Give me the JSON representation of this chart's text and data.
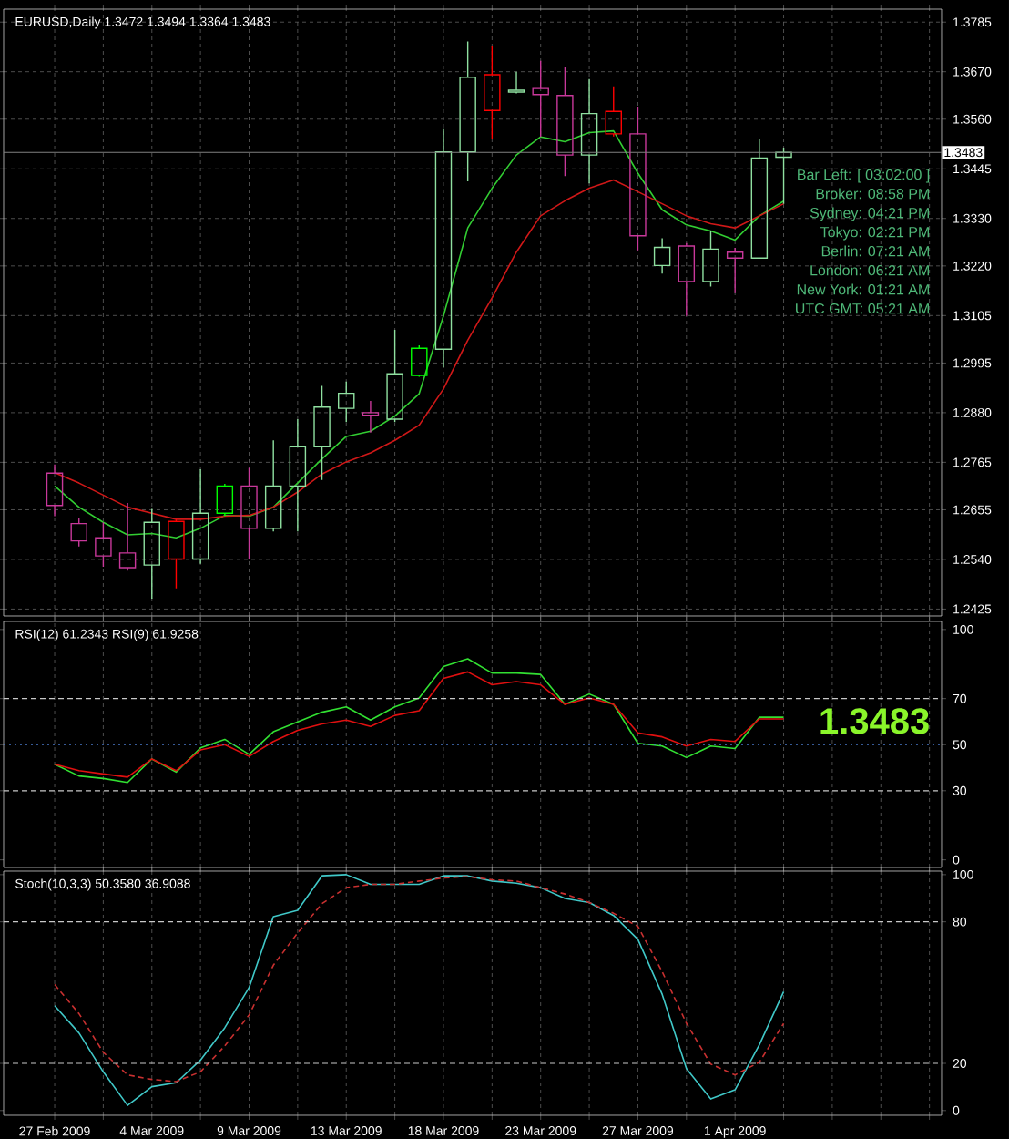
{
  "chart_data": [
    {
      "type": "candlestick",
      "title": "EURUSD,Daily 1.3472 1.3494 1.3364 1.3483",
      "categories": [
        null,
        null,
        null,
        null,
        null,
        null,
        null,
        null,
        null,
        null,
        null,
        null,
        null,
        null,
        null,
        null,
        null,
        null,
        null,
        null,
        null,
        null,
        null,
        null,
        null,
        null,
        null,
        null,
        null,
        null,
        null
      ],
      "ohlc": [
        [
          1.274,
          1.276,
          1.264,
          1.2665
        ],
        [
          1.2623,
          1.2635,
          1.257,
          1.2583
        ],
        [
          1.259,
          1.2626,
          1.2523,
          1.2548
        ],
        [
          1.2555,
          1.2671,
          1.2514,
          1.2521
        ],
        [
          1.2527,
          1.2657,
          1.2449,
          1.2626
        ],
        [
          1.2628,
          1.2633,
          1.2473,
          1.2541
        ],
        [
          1.2541,
          1.2749,
          1.253,
          1.2647
        ],
        [
          1.2647,
          1.2715,
          1.264,
          1.271
        ],
        [
          1.271,
          1.2752,
          1.2541,
          1.2612
        ],
        [
          1.2612,
          1.2816,
          1.2605,
          1.271
        ],
        [
          1.271,
          1.2865,
          1.2605,
          1.2801
        ],
        [
          1.2801,
          1.2942,
          1.2724,
          1.2893
        ],
        [
          1.289,
          1.2952,
          1.2858,
          1.2925
        ],
        [
          1.288,
          1.2907,
          1.2834,
          1.2874
        ],
        [
          1.2865,
          1.3072,
          1.2858,
          1.297
        ],
        [
          1.2966,
          1.3036,
          1.2963,
          1.3029
        ],
        [
          1.3027,
          1.3537,
          1.2985,
          1.3484
        ],
        [
          1.3484,
          1.374,
          1.3416,
          1.3657
        ],
        [
          1.3663,
          1.373,
          1.3515,
          1.358
        ],
        [
          1.3623,
          1.367,
          1.362,
          1.3627
        ],
        [
          1.3631,
          1.3695,
          1.3519,
          1.3617
        ],
        [
          1.3615,
          1.3681,
          1.3428,
          1.3477
        ],
        [
          1.3477,
          1.3653,
          1.3411,
          1.3573
        ],
        [
          1.3578,
          1.3636,
          1.352,
          1.3526
        ],
        [
          1.3526,
          1.3589,
          1.3256,
          1.329
        ],
        [
          1.3221,
          1.3284,
          1.3202,
          1.3263
        ],
        [
          1.3266,
          1.3273,
          1.3104,
          1.3184
        ],
        [
          1.3184,
          1.3301,
          1.3172,
          1.3259
        ],
        [
          1.3252,
          1.3262,
          1.3157,
          1.3238
        ],
        [
          1.3238,
          1.3515,
          1.3238,
          1.347
        ],
        [
          1.3472,
          1.3494,
          1.3364,
          1.3483
        ]
      ],
      "colors": [
        "#c8389a",
        "#c8389a",
        "#c8389a",
        "#c8389a",
        "#8fe0a0",
        "#ff0000",
        "#8fe0a0",
        "#00ff00",
        "#c8389a",
        "#8fe0a0",
        "#8fe0a0",
        "#8fe0a0",
        "#8fe0a0",
        "#c8389a",
        "#8fe0a0",
        "#00ff00",
        "#8fe0a0",
        "#8fe0a0",
        "#ff0000",
        "#8fe0a0",
        "#c8389a",
        "#c8389a",
        "#8fe0a0",
        "#ff0000",
        "#c8389a",
        "#8fe0a0",
        "#c8389a",
        "#8fe0a0",
        "#c8389a",
        "#8fe0a0",
        "#8fe0a0"
      ],
      "series": [
        {
          "type": "line",
          "color": "#32cd32",
          "values": [
            1.271,
            1.2661,
            1.2626,
            1.2597,
            1.26,
            1.259,
            1.2612,
            1.2642,
            1.264,
            1.2661,
            1.2717,
            1.2773,
            1.2825,
            1.2837,
            1.2872,
            1.2924,
            1.3104,
            1.3308,
            1.34,
            1.3477,
            1.3519,
            1.3508,
            1.3529,
            1.3533,
            1.3435,
            1.335,
            1.3315,
            1.3301,
            1.328,
            1.3336,
            1.337
          ]
        },
        {
          "type": "line",
          "color": "#d01818",
          "values": [
            1.2741,
            1.2717,
            1.2689,
            1.2661,
            1.2647,
            1.2633,
            1.2633,
            1.264,
            1.2642,
            1.2661,
            1.2696,
            1.2738,
            1.2766,
            1.2787,
            1.2816,
            1.2851,
            1.2935,
            1.3048,
            1.3146,
            1.3252,
            1.3336,
            1.3371,
            1.34,
            1.3419,
            1.3392,
            1.3364,
            1.3336,
            1.3318,
            1.3308,
            1.3336,
            1.3364
          ]
        }
      ],
      "ylim": [
        1.2409,
        1.3815
      ],
      "yticks": [
        1.3785,
        {
          "value": 1.367,
          "label": "1.3670"
        },
        {
          "value": 1.356,
          "label": "1.3560"
        },
        1.3445,
        {
          "value": 1.333,
          "label": "1.3330"
        },
        {
          "value": 1.322,
          "label": "1.3220"
        },
        1.3105,
        1.2995,
        {
          "value": 1.288,
          "label": "1.2880"
        },
        1.2765,
        1.2655,
        {
          "value": 1.254,
          "label": "1.2540"
        },
        1.2425
      ],
      "grid": true,
      "tick_labels": "y",
      "ref_lines": [
        {
          "axis": "y",
          "value": 1.3483,
          "label": "1.3483",
          "color": "#808080",
          "line_style": "solid"
        }
      ],
      "annotations": [
        "Bar Left: [ 03:02:00 ]",
        "Broker: 08:58 PM",
        "Sydney: 04:21 PM",
        "Tokyo: 02:21 PM",
        "Berlin: 07:21 AM",
        "London: 06:21 AM",
        "New York: 01:21 AM",
        "UTC GMT: 05:21 AM"
      ]
    },
    {
      "type": "line",
      "title": "RSI(12) 61.2343 RSI(9) 61.9258",
      "categories": [
        null,
        null,
        null,
        null,
        null,
        null,
        null,
        null,
        null,
        null,
        null,
        null,
        null,
        null,
        null,
        null,
        null,
        null,
        null,
        null,
        null,
        null,
        null,
        null,
        null,
        null,
        null,
        null,
        null,
        null,
        null
      ],
      "series": [
        {
          "color": "#32e032",
          "values": [
            41.5,
            36.4,
            35.3,
            33.6,
            43.8,
            38.1,
            48.6,
            52.3,
            45.8,
            55.6,
            59.9,
            64.1,
            66.4,
            60.7,
            66.4,
            70.3,
            83.9,
            87.3,
            81.1,
            81.1,
            80.5,
            67.5,
            72.0,
            67.5,
            50.6,
            49.4,
            44.4,
            49.4,
            48.3,
            61.9,
            61.9
          ]
        },
        {
          "color": "#e01010",
          "values": [
            41.5,
            38.7,
            37.3,
            35.9,
            43.8,
            38.7,
            47.7,
            50.0,
            44.9,
            51.4,
            56.2,
            59.0,
            60.7,
            57.9,
            62.7,
            64.7,
            78.8,
            81.6,
            76.0,
            77.4,
            76.0,
            67.5,
            70.3,
            67.5,
            55.1,
            53.4,
            49.4,
            52.3,
            51.4,
            61.2,
            61.2
          ]
        }
      ],
      "ylim": [
        -3.3,
        103.5
      ],
      "yticks": [
        0,
        30,
        50,
        70,
        100
      ],
      "grid": "x",
      "tick_labels": "y",
      "ref_lines": [
        {
          "axis": "y",
          "value": 70,
          "color": "#c8c8c8",
          "line_style": "dashed"
        },
        {
          "axis": "y",
          "value": 50,
          "color": "#4a78c8",
          "line_style": "dotted"
        },
        {
          "axis": "y",
          "value": 30,
          "color": "#c8c8c8",
          "line_style": "dashed"
        }
      ],
      "annotations": [
        "1.3483"
      ]
    },
    {
      "type": "line",
      "title": "Stoch(10,3,3) 50.3580 36.9088",
      "categories": [
        "27 Feb 2009",
        null,
        null,
        null,
        "4 Mar 2009",
        null,
        null,
        null,
        "9 Mar 2009",
        null,
        null,
        null,
        "13 Mar 2009",
        null,
        null,
        null,
        "18 Mar 2009",
        null,
        null,
        null,
        "23 Mar 2009",
        null,
        null,
        null,
        "27 Mar 2009",
        null,
        null,
        null,
        "1 Apr 2009",
        null,
        null
      ],
      "series": [
        {
          "color": "#40c8c8",
          "values": [
            44.4,
            32.9,
            16.4,
            2.2,
            10.1,
            11.8,
            21.4,
            35.1,
            52.1,
            82.2,
            84.9,
            99.5,
            100,
            95.9,
            95.9,
            95.9,
            99.5,
            99.5,
            97.3,
            96.4,
            94.5,
            89.9,
            88.2,
            82.7,
            72.6,
            49.3,
            17.8,
            4.9,
            8.8,
            27.9,
            50.4
          ]
        },
        {
          "color": "#c83030",
          "line_style": "dashed",
          "values": [
            53.4,
            41.1,
            24.7,
            15.1,
            13.2,
            12.3,
            16.4,
            27.4,
            40.5,
            61.6,
            75.3,
            87.7,
            94.5,
            95.9,
            95.9,
            97.3,
            98.6,
            99.2,
            97.8,
            97.3,
            94.5,
            91.8,
            88.2,
            83.6,
            78.1,
            58.9,
            37.0,
            19.7,
            15.1,
            20.5,
            36.9
          ]
        }
      ],
      "ylim": [
        -2,
        101.5
      ],
      "yticks": [
        0,
        20,
        80,
        100
      ],
      "grid": "x",
      "ref_lines": [
        {
          "axis": "y",
          "value": 80,
          "color": "#c8c8c8",
          "line_style": "dashed"
        },
        {
          "axis": "y",
          "value": 20,
          "color": "#c8c8c8",
          "line_style": "dashed"
        }
      ]
    }
  ]
}
